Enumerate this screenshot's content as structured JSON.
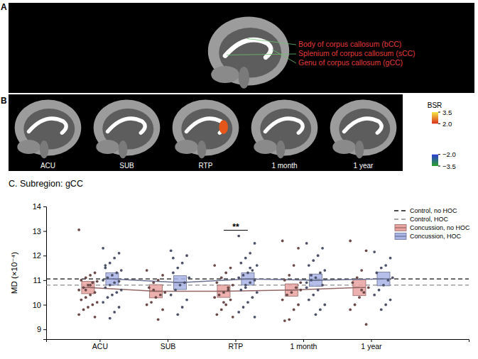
{
  "panel_a": {
    "letter": "A",
    "labels": [
      "Body of corpus callosum (bCC)",
      "Splenium of corpus callosum (sCC)",
      "Genu of corpus callosum (gCC)"
    ]
  },
  "panel_b": {
    "letter": "B",
    "timepoints": [
      "ACU",
      "SUB",
      "RTP",
      "1 month",
      "1 year"
    ],
    "significant": [
      false,
      false,
      true,
      false,
      false
    ],
    "colorbar": {
      "title": "BSR",
      "range": [
        -3.5,
        3.5
      ],
      "ticks": [
        3.5,
        {
          "value": 2,
          "label": "2.0"
        },
        {
          "value": -2,
          "label": "−2.0"
        },
        {
          "value": -3.5,
          "label": "−3.5"
        }
      ]
    }
  },
  "chart_data": {
    "type": "box",
    "title": "C. Subregion: gCC",
    "y_label": "MD (×10⁻⁴)",
    "categories": [
      "ACU",
      "SUB",
      "RTP",
      "1 month",
      "1 year"
    ],
    "ylim": [
      8.6,
      14
    ],
    "yticks": [
      9,
      10,
      11,
      12,
      13,
      14
    ],
    "legend": "upper right",
    "reference_lines": [
      {
        "name": "Control, no HOC",
        "value": 11.05,
        "color": "#111111",
        "line_style": "dashed"
      },
      {
        "name": "Control, HOC",
        "value": 10.8,
        "color": "#8a8a8a",
        "line_style": "dashed"
      }
    ],
    "series": [
      {
        "name": "Concussion, no HOC",
        "color": "#e9a3a0",
        "values": [
          10.7,
          10.55,
          10.55,
          10.6,
          10.7
        ],
        "error": [
          0.25,
          0.27,
          0.25,
          0.25,
          0.33
        ],
        "points": [
          [
            13.05,
            11.3,
            11.2,
            11.1,
            11.0,
            10.95,
            10.9,
            10.8,
            10.7,
            10.6,
            10.5,
            10.4,
            10.3,
            10.2,
            10.1,
            10.0,
            9.9,
            9.8,
            9.6,
            9.5,
            10.8,
            10.6
          ],
          [
            11.4,
            11.2,
            11.0,
            10.9,
            10.7,
            10.5,
            10.4,
            10.3,
            10.1,
            10.0,
            9.8,
            9.4,
            10.6
          ],
          [
            11.6,
            11.5,
            11.3,
            11.1,
            10.9,
            10.8,
            10.6,
            10.5,
            10.4,
            10.3,
            10.2,
            10.0,
            9.8,
            9.6,
            9.5,
            10.7,
            10.1
          ],
          [
            12.6,
            12.3,
            11.6,
            11.2,
            11.0,
            10.9,
            10.7,
            10.5,
            10.4,
            10.2,
            10.0,
            9.8,
            9.4,
            9.35,
            10.6
          ],
          [
            12.6,
            12.2,
            11.4,
            11.1,
            10.9,
            10.7,
            10.5,
            10.3,
            10.0,
            9.8,
            9.2,
            10.6
          ]
        ]
      },
      {
        "name": "Concussion, HOC",
        "color": "#a8b4e6",
        "values": [
          11.05,
          10.9,
          11.05,
          11.0,
          11.05
        ],
        "error": [
          0.25,
          0.28,
          0.25,
          0.25,
          0.28
        ],
        "points": [
          [
            12.3,
            12.1,
            11.9,
            11.7,
            11.5,
            11.4,
            11.3,
            11.2,
            11.1,
            11.0,
            10.95,
            10.9,
            10.8,
            10.7,
            10.6,
            10.5,
            10.4,
            10.3,
            10.1,
            9.9,
            9.7,
            9.45,
            11.6
          ],
          [
            12.2,
            12.0,
            11.7,
            11.5,
            11.3,
            11.1,
            10.9,
            10.8,
            10.6,
            10.4,
            10.2,
            9.9,
            9.6,
            11.9
          ],
          [
            12.8,
            12.5,
            12.1,
            11.9,
            11.7,
            11.6,
            11.4,
            11.3,
            11.2,
            11.1,
            11.0,
            10.9,
            10.8,
            10.6,
            10.5,
            10.3,
            10.1,
            9.9,
            9.7,
            9.5,
            11.5,
            10.7
          ],
          [
            12.5,
            12.3,
            12.0,
            11.8,
            11.6,
            11.4,
            11.3,
            11.1,
            11.0,
            10.9,
            10.8,
            10.6,
            10.4,
            10.2,
            10.0,
            9.8,
            9.6,
            11.2,
            10.7
          ],
          [
            12.15,
            11.9,
            11.6,
            11.5,
            11.3,
            11.1,
            11.0,
            10.8,
            10.6,
            10.4,
            10.2,
            10.0,
            9.8
          ]
        ]
      }
    ],
    "annotations": [
      {
        "text": "**",
        "category": "RTP"
      }
    ]
  }
}
